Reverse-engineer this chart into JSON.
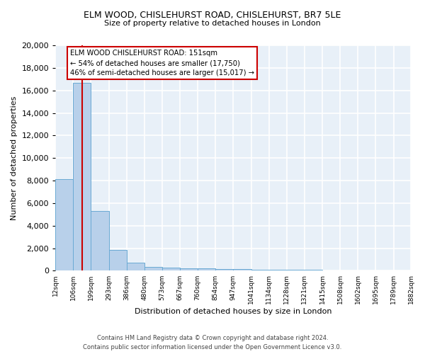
{
  "title": "ELM WOOD, CHISLEHURST ROAD, CHISLEHURST, BR7 5LE",
  "subtitle": "Size of property relative to detached houses in London",
  "xlabel": "Distribution of detached houses by size in London",
  "ylabel": "Number of detached properties",
  "bin_edges": [
    12,
    106,
    199,
    293,
    386,
    480,
    573,
    667,
    760,
    854,
    947,
    1041,
    1134,
    1228,
    1321,
    1415,
    1508,
    1602,
    1695,
    1789,
    1882
  ],
  "bar_heights": [
    8100,
    16700,
    5300,
    1850,
    700,
    330,
    270,
    220,
    220,
    180,
    130,
    110,
    90,
    80,
    70,
    60,
    55,
    50,
    45,
    40
  ],
  "bar_color": "#b8d0ea",
  "bar_edge_color": "#6aaad4",
  "bg_color": "#e8f0f8",
  "grid_color": "#ffffff",
  "red_line_x": 151,
  "annotation_title": "ELM WOOD CHISLEHURST ROAD: 151sqm",
  "annotation_line1": "← 54% of detached houses are smaller (17,750)",
  "annotation_line2": "46% of semi-detached houses are larger (15,017) →",
  "annotation_box_color": "#ffffff",
  "annotation_box_edge": "#cc0000",
  "footnote1": "Contains HM Land Registry data © Crown copyright and database right 2024.",
  "footnote2": "Contains public sector information licensed under the Open Government Licence v3.0.",
  "ylim": [
    0,
    20000
  ],
  "yticks": [
    0,
    2000,
    4000,
    6000,
    8000,
    10000,
    12000,
    14000,
    16000,
    18000,
    20000
  ]
}
